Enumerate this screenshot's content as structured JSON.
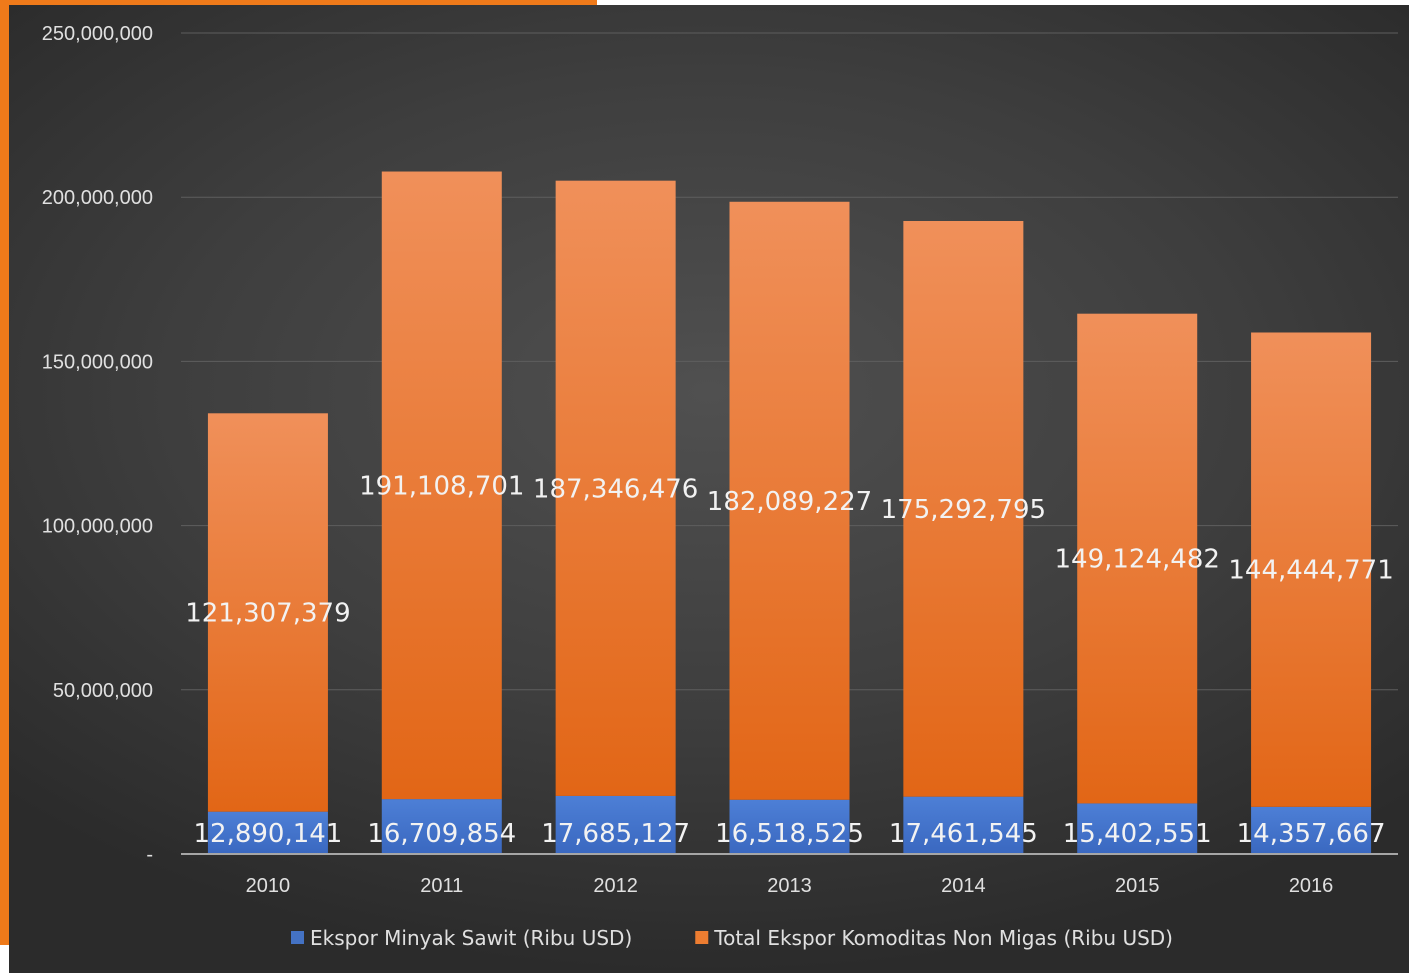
{
  "chart_data": {
    "type": "bar",
    "stacked": true,
    "categories": [
      "2010",
      "2011",
      "2012",
      "2013",
      "2014",
      "2015",
      "2016"
    ],
    "series": [
      {
        "name": "Ekspor Minyak Sawit (Ribu USD)",
        "color": "#4472c4",
        "values": [
          12890141,
          16709854,
          17685127,
          16518525,
          17461545,
          15402551,
          14357667
        ],
        "labels": [
          "12,890,141",
          "16,709,854",
          "17,685,127",
          "16,518,525",
          "17,461,545",
          "15,402,551",
          "14,357,667"
        ]
      },
      {
        "name": "Total Ekspor Komoditas Non Migas (Ribu USD)",
        "color": "#ed7d31",
        "values": [
          121307379,
          191108701,
          187346476,
          182089227,
          175292795,
          149124482,
          144444771
        ],
        "labels": [
          "121,307,379",
          "191,108,701",
          "187,346,476",
          "182,089,227",
          "175,292,795",
          "149,124,482",
          "144,444,771"
        ]
      }
    ],
    "ylim": [
      0,
      250000000
    ],
    "yticks": [
      0,
      50000000,
      100000000,
      150000000,
      200000000,
      250000000
    ],
    "ytick_labels": [
      "-",
      "50,000,000",
      "100,000,000",
      "150,000,000",
      "200,000,000",
      "250,000,000"
    ],
    "grid": true,
    "legend_position": "bottom",
    "title": "",
    "xlabel": "",
    "ylabel": ""
  }
}
